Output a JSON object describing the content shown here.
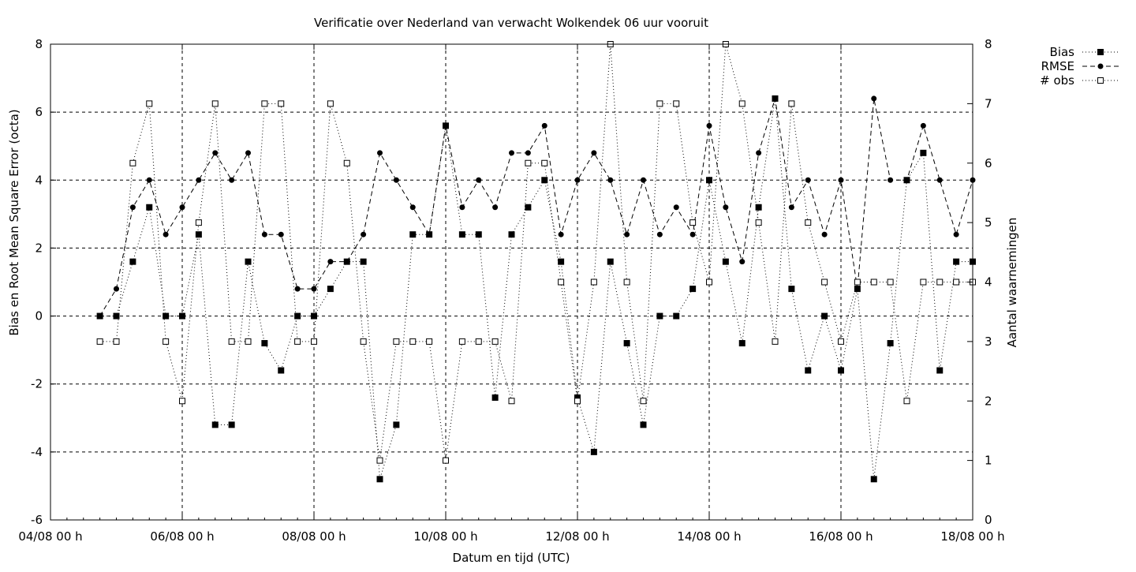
{
  "chart_data": {
    "type": "line",
    "title": "Verificatie over Nederland van verwacht Wolkendek 06 uur vooruit",
    "xlabel": "Datum en tijd (UTC)",
    "ylabel": "Bias en Root Mean Square Error (octa)",
    "y2label": "Aantal waarnemingen",
    "x_tick_labels": [
      "04/08 00 h",
      "06/08 00 h",
      "08/08 00 h",
      "10/08 00 h",
      "12/08 00 h",
      "14/08 00 h",
      "16/08 00 h",
      "18/08 00 h"
    ],
    "ylim": [
      -6,
      8
    ],
    "y_ticks": [
      "-6",
      "-4",
      "-2",
      "0",
      "2",
      "4",
      "6",
      "8"
    ],
    "y2lim": [
      0,
      8
    ],
    "y2_ticks": [
      "0",
      "1",
      "2",
      "3",
      "4",
      "5",
      "6",
      "7",
      "8"
    ],
    "grid": true,
    "legend_position": "top-right, outside plot",
    "series": [
      {
        "name": "Bias",
        "axis": "y1",
        "values": [
          0,
          0,
          1.6,
          3.2,
          0,
          0,
          2.4,
          -3.2,
          -3.2,
          1.6,
          -0.8,
          -1.6,
          0,
          0,
          0.8,
          1.6,
          1.6,
          -4.8,
          -3.2,
          2.4,
          2.4,
          5.6,
          2.4,
          2.4,
          -2.4,
          2.4,
          3.2,
          4.0,
          1.6,
          -2.4,
          -4.0,
          1.6,
          -0.8,
          -3.2,
          0,
          0,
          0.8,
          4.0,
          1.6,
          -0.8,
          3.2,
          6.4,
          0.8,
          -1.6,
          0,
          -1.6,
          0.8,
          -4.8,
          -0.8,
          4.0,
          4.8,
          -1.6,
          1.6,
          1.6
        ]
      },
      {
        "name": "RMSE",
        "axis": "y1",
        "values": [
          0,
          0.8,
          3.2,
          4.0,
          2.4,
          3.2,
          4.0,
          4.8,
          4.0,
          4.8,
          2.4,
          2.4,
          0.8,
          0.8,
          1.6,
          1.6,
          2.4,
          4.8,
          4.0,
          3.2,
          2.4,
          5.6,
          3.2,
          4.0,
          3.2,
          4.8,
          4.8,
          5.6,
          2.4,
          4.0,
          4.8,
          4.0,
          2.4,
          4.0,
          2.4,
          3.2,
          2.4,
          5.6,
          3.2,
          1.6,
          4.8,
          6.4,
          3.2,
          4.0,
          2.4,
          4.0,
          0.8,
          6.4,
          4.0,
          4.0,
          5.6,
          4.0,
          2.4,
          4.0
        ]
      },
      {
        "name": "# obs",
        "axis": "y2",
        "values": [
          3,
          3,
          6,
          7,
          3,
          2,
          5,
          7,
          3,
          3,
          7,
          7,
          3,
          3,
          7,
          6,
          3,
          1,
          3,
          3,
          3,
          1,
          3,
          3,
          3,
          2,
          6,
          6,
          4,
          2,
          4,
          8,
          4,
          2,
          7,
          7,
          5,
          4,
          8,
          7,
          5,
          3,
          7,
          5,
          4,
          3,
          4,
          4,
          4,
          2,
          4,
          4,
          4,
          4
        ]
      }
    ]
  }
}
